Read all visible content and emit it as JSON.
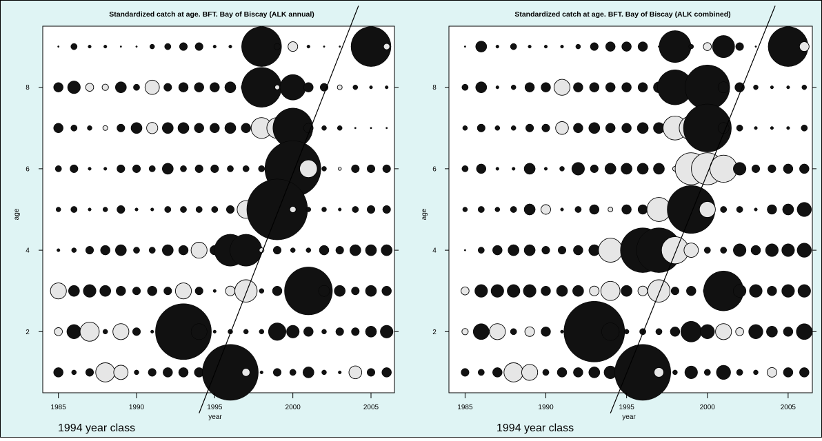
{
  "colors": {
    "background": "#dff4f4",
    "panel": "#ffffff",
    "dark_bubble": "#111111",
    "light_bubble": "#e6e6e6",
    "outline": "#000000"
  },
  "chart_data": [
    {
      "type": "scatter",
      "title": "Standardized catch at age. BFT. Bay of Biscay (ALK annual)",
      "xlabel": "year",
      "ylabel": "age",
      "xlim": [
        1984,
        2006.5
      ],
      "ylim": [
        0.5,
        9.5
      ],
      "x_ticks": [
        1985,
        1990,
        1995,
        2000,
        2005
      ],
      "y_ticks": [
        2,
        4,
        6,
        8
      ],
      "grid": false,
      "encoding": "bubble size = |standardized catch|, dark = positive, light = negative",
      "annotation": {
        "text": "1994 year class",
        "line_from": [
          1994,
          0
        ],
        "line_to": [
          2004.2,
          10
        ]
      },
      "bubbles": [
        {
          "age": 9,
          "values": [
            0.1,
            0.4,
            0.2,
            0.2,
            0.1,
            0.1,
            0.3,
            0.4,
            0.5,
            0.5,
            0.2,
            0.2,
            0.1,
            2.5,
            0.4,
            -0.6,
            0.2,
            0.1,
            0.1,
            0.3,
            2.5,
            -0.4
          ]
        },
        {
          "age": 8,
          "values": [
            0.6,
            0.8,
            -0.5,
            -0.4,
            0.7,
            0.4,
            -0.9,
            0.5,
            0.6,
            0.6,
            0.6,
            0.7,
            0.6,
            2.5,
            -0.3,
            1.6,
            0.6,
            0.5,
            -0.3,
            0.3,
            0.2,
            0.2
          ]
        },
        {
          "age": 7,
          "values": [
            0.6,
            0.4,
            0.3,
            -0.3,
            0.5,
            0.7,
            -0.7,
            0.7,
            0.7,
            0.6,
            0.6,
            0.7,
            0.6,
            -1.3,
            -1.3,
            2.5,
            0.6,
            0.3,
            0.3,
            0.1,
            0.1,
            0.1
          ]
        },
        {
          "age": 6,
          "values": [
            0.4,
            0.5,
            0.2,
            0.2,
            0.5,
            0.5,
            0.4,
            0.7,
            0.4,
            0.5,
            0.5,
            0.4,
            0.4,
            0.4,
            -1.0,
            3.5,
            -1.1,
            0.3,
            -0.2,
            0.5,
            0.5,
            0.5
          ]
        },
        {
          "age": 5,
          "values": [
            0.3,
            0.4,
            0.2,
            0.3,
            0.5,
            0.2,
            0.2,
            0.4,
            0.4,
            0.4,
            0.4,
            0.5,
            -1.1,
            0.6,
            3.8,
            -0.4,
            0.3,
            0.3,
            0.2,
            0.4,
            0.5,
            0.5
          ]
        },
        {
          "age": 4,
          "values": [
            0.2,
            0.3,
            0.5,
            0.6,
            0.7,
            0.4,
            0.4,
            0.7,
            0.6,
            -1.0,
            0.6,
            2.0,
            2.0,
            -0.3,
            0.5,
            0.3,
            0.3,
            0.6,
            0.5,
            0.7,
            0.7,
            0.7
          ]
        },
        {
          "age": 3,
          "values": [
            -1.0,
            0.7,
            0.8,
            0.7,
            0.6,
            0.5,
            0.6,
            0.5,
            -1.0,
            0.5,
            0.2,
            -0.6,
            -1.4,
            0.3,
            0.6,
            -0.4,
            3.0,
            0.7,
            0.7,
            0.5,
            0.7,
            0.6
          ]
        },
        {
          "age": 2,
          "values": [
            -0.5,
            0.9,
            -1.2,
            0.3,
            -1.0,
            0.5,
            0.2,
            0.3,
            3.5,
            1.0,
            0.2,
            0.3,
            0.3,
            0.3,
            1.1,
            0.8,
            0.6,
            0.3,
            0.5,
            0.5,
            0.7,
            0.8
          ]
        },
        {
          "age": 1,
          "values": [
            0.6,
            0.3,
            0.5,
            -1.2,
            -0.9,
            0.3,
            0.5,
            0.6,
            0.6,
            0.6,
            -0.7,
            3.5,
            -0.5,
            0.2,
            0.5,
            0.4,
            0.7,
            0.3,
            0.2,
            -0.8,
            0.5,
            0.6
          ]
        }
      ]
    },
    {
      "type": "scatter",
      "title": "Standardized catch at age. BFT. Bay of Biscay (ALK combined)",
      "xlabel": "year",
      "ylabel": "age",
      "xlim": [
        1984,
        2006.5
      ],
      "ylim": [
        0.5,
        9.5
      ],
      "x_ticks": [
        1985,
        1990,
        1995,
        2000,
        2005
      ],
      "y_ticks": [
        2,
        4,
        6,
        8
      ],
      "grid": false,
      "encoding": "bubble size = |standardized catch|, dark = positive, light = negative",
      "annotation": {
        "text": "1994 year class",
        "line_from": [
          1994,
          0
        ],
        "line_to": [
          2004.2,
          10
        ]
      },
      "bubbles": [
        {
          "age": 9,
          "values": [
            0.1,
            0.7,
            0.2,
            0.4,
            0.2,
            0.2,
            0.2,
            0.3,
            0.5,
            0.6,
            0.6,
            0.6,
            0.1,
            2.0,
            0.3,
            -0.5,
            1.4,
            0.5,
            0.1,
            0.2,
            2.5,
            -0.6
          ]
        },
        {
          "age": 8,
          "values": [
            0.4,
            0.7,
            0.2,
            0.3,
            0.6,
            0.6,
            -1.0,
            0.6,
            0.6,
            0.6,
            0.6,
            0.6,
            0.7,
            2.2,
            -0.6,
            2.8,
            0.7,
            0.6,
            0.3,
            0.2,
            0.2,
            0.3
          ]
        },
        {
          "age": 7,
          "values": [
            0.3,
            0.5,
            0.3,
            0.3,
            0.5,
            0.5,
            -0.8,
            0.6,
            0.7,
            0.6,
            0.6,
            0.7,
            0.7,
            -1.5,
            -1.5,
            3.0,
            0.7,
            0.4,
            0.2,
            0.2,
            0.2,
            0.4
          ]
        },
        {
          "age": 6,
          "values": [
            0.4,
            0.6,
            0.2,
            0.2,
            0.7,
            0.2,
            0.3,
            0.8,
            0.5,
            0.7,
            0.7,
            0.7,
            0.7,
            -0.3,
            -2.0,
            -2.0,
            -1.7,
            0.8,
            0.5,
            0.5,
            0.6,
            0.6
          ]
        },
        {
          "age": 5,
          "values": [
            0.3,
            0.4,
            0.3,
            0.4,
            0.7,
            -0.6,
            0.2,
            0.4,
            0.6,
            -0.3,
            0.6,
            0.6,
            -1.5,
            0.7,
            3.0,
            -1.0,
            0.4,
            0.4,
            0.2,
            0.6,
            0.7,
            0.9
          ]
        },
        {
          "age": 4,
          "values": [
            0.1,
            0.4,
            0.6,
            0.7,
            0.7,
            0.5,
            0.5,
            0.6,
            0.7,
            -1.5,
            0.7,
            2.8,
            2.8,
            -1.7,
            -0.9,
            0.4,
            0.4,
            0.8,
            0.6,
            0.8,
            0.8,
            0.9
          ]
        },
        {
          "age": 3,
          "values": [
            -0.5,
            0.8,
            0.8,
            0.8,
            0.8,
            0.6,
            0.7,
            0.7,
            -0.6,
            -1.2,
            0.7,
            -0.6,
            -1.4,
            0.5,
            0.6,
            -0.5,
            2.5,
            0.8,
            0.8,
            0.6,
            0.8,
            0.8
          ]
        },
        {
          "age": 2,
          "values": [
            -0.4,
            1.0,
            -1.0,
            0.4,
            -0.6,
            0.6,
            0.2,
            0.4,
            3.8,
            1.1,
            0.3,
            0.4,
            0.4,
            0.6,
            1.3,
            0.9,
            -1.0,
            -0.5,
            0.9,
            0.7,
            0.6,
            1.0
          ]
        },
        {
          "age": 1,
          "values": [
            0.5,
            0.4,
            0.6,
            -1.2,
            -1.0,
            0.4,
            0.6,
            0.6,
            0.7,
            0.8,
            -0.7,
            3.5,
            -0.6,
            0.3,
            0.8,
            0.4,
            0.9,
            0.4,
            0.3,
            -0.6,
            0.6,
            0.6
          ]
        }
      ]
    }
  ]
}
